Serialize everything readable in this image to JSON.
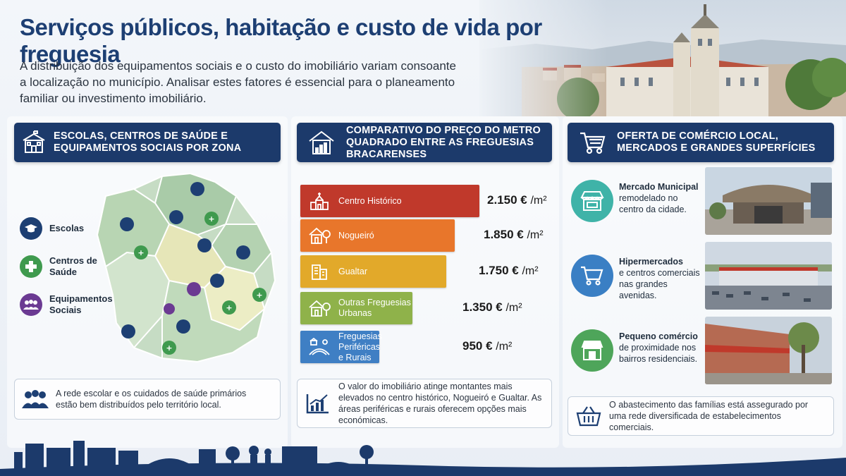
{
  "header": {
    "title": "Serviços públicos, habitação e custo de vida por freguesia",
    "intro": "A distribuição dos equipamentos sociais e o custo do imobiliário variam consoante a localização no município. Analisar estes fatores é essencial para o planeamento familiar ou investimento imobiliário."
  },
  "section1": {
    "title": "Escolas, centros de saúde e equipamentos sociais por zona",
    "legend": [
      {
        "label": "Escolas",
        "color": "#1d3f73",
        "icon": "graduation-cap-icon"
      },
      {
        "label": "Centros de Saúde",
        "color": "#3f9a4e",
        "icon": "medical-cross-icon"
      },
      {
        "label": "Equipamentos Sociais",
        "color": "#6b3a92",
        "icon": "people-group-icon"
      }
    ],
    "note": "A rede escolar e os cuidados de saúde primários estão bem distribuídos pelo território local."
  },
  "section2": {
    "title": "Comparativo do preço do metro quadrado entre as freguesias bracarenses",
    "unit": "/m²",
    "bars": [
      {
        "label": "Centro Histórico",
        "value": "2.150 €",
        "numeric": 2150,
        "color": "#c0392b",
        "icon": "church-icon"
      },
      {
        "label": "Nogueiró",
        "value": "1.850 €",
        "numeric": 1850,
        "color": "#e8762b",
        "icon": "house-tree-icon"
      },
      {
        "label": "Gualtar",
        "value": "1.750 €",
        "numeric": 1750,
        "color": "#e2a92a",
        "icon": "buildings-icon"
      },
      {
        "label": "Outras Freguesias Urbanas",
        "value": "1.350 €",
        "numeric": 1350,
        "color": "#8fb24a",
        "icon": "house-tree-icon"
      },
      {
        "label": "Freguesias Periféricas e Rurais",
        "value": "950 €",
        "numeric": 950,
        "color": "#3f7fc4",
        "icon": "fields-icon"
      }
    ],
    "note": "O valor do imobiliário atinge montantes mais elevados no centro histórico, Nogueiró e Gualtar. As áreas periféricas e rurais oferecem opções mais económicas."
  },
  "section3": {
    "title": "Oferta de comércio local, mercados e grandes superfícies",
    "items": [
      {
        "title": "Mercado Municipal",
        "text": "remodelado no centro da cidade.",
        "color": "#3fb3a8",
        "icon": "market-stall-icon"
      },
      {
        "title": "Hipermercados",
        "text": "e centros comerciais nas grandes avenidas.",
        "color": "#3a7fc4",
        "icon": "shopping-cart-icon"
      },
      {
        "title": "Pequeno comércio",
        "text": "de proximidade nos bairros residenciais.",
        "color": "#4ea55a",
        "icon": "shop-icon"
      }
    ],
    "note": "O abastecimento das famílias está assegurado por uma rede diversificada de estabelecimentos comerciais."
  },
  "colors": {
    "navy": "#1c3a6b",
    "title": "#1d3f73"
  }
}
